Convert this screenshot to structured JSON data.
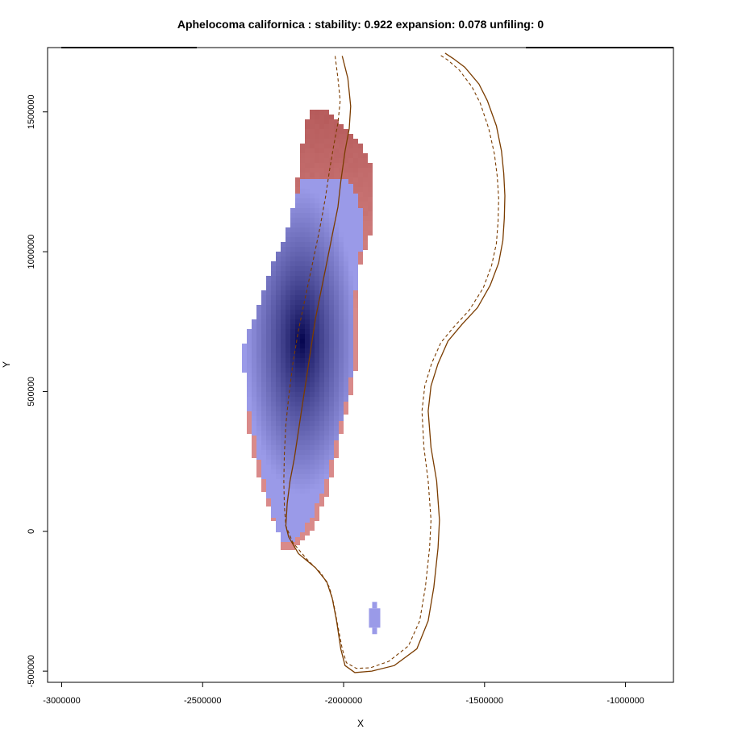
{
  "chart_data": {
    "type": "heatmap",
    "title": "Aphelocoma californica : stability: 0.922 expansion: 0.078 unfiling: 0",
    "xlabel": "X",
    "ylabel": "Y",
    "xlim": [
      -3050000,
      -830000
    ],
    "ylim": [
      -540000,
      1730000
    ],
    "x_ticks": [
      -3000000,
      -2500000,
      -2000000,
      -1500000,
      -1000000
    ],
    "y_ticks": [
      -500000,
      0,
      500000,
      1000000,
      1500000
    ],
    "x_tick_labels": [
      "-3000000",
      "-2500000",
      "-2000000",
      "-1500000",
      "-1000000"
    ],
    "y_tick_labels": [
      "-500000",
      "0",
      "500000",
      "1000000",
      "1500000"
    ],
    "grid": false,
    "legend": "none",
    "colors": {
      "stability": "#00004a",
      "stability_light": "#9a9ae8",
      "expansion": "#d98a8a",
      "expansion_dark": "#b55a5a",
      "outline": "#7a3c00"
    },
    "layers": [
      {
        "name": "stability",
        "peak": [
          -2150000,
          680000
        ]
      },
      {
        "name": "expansion",
        "extent": [
          -2095000,
          -1910000,
          1000000,
          1500000
        ]
      },
      {
        "name": "stability-patch",
        "center": [
          -1890000,
          -310000
        ]
      }
    ],
    "outline_solid": [
      [
        -2005000,
        1700000
      ],
      [
        -1985000,
        1620000
      ],
      [
        -1975000,
        1520000
      ],
      [
        -1980000,
        1440000
      ],
      [
        -1995000,
        1360000
      ],
      [
        -2010000,
        1250000
      ],
      [
        -2020000,
        1160000
      ],
      [
        -2040000,
        1060000
      ],
      [
        -2060000,
        960000
      ],
      [
        -2080000,
        860000
      ],
      [
        -2100000,
        760000
      ],
      [
        -2115000,
        660000
      ],
      [
        -2130000,
        560000
      ],
      [
        -2145000,
        460000
      ],
      [
        -2160000,
        360000
      ],
      [
        -2175000,
        260000
      ],
      [
        -2190000,
        180000
      ],
      [
        -2200000,
        100000
      ],
      [
        -2205000,
        20000
      ],
      [
        -2195000,
        -20000
      ],
      [
        -2160000,
        -80000
      ],
      [
        -2100000,
        -130000
      ],
      [
        -2060000,
        -180000
      ],
      [
        -2040000,
        -240000
      ],
      [
        -2025000,
        -320000
      ],
      [
        -2010000,
        -420000
      ],
      [
        -1995000,
        -480000
      ],
      [
        -1960000,
        -505000
      ],
      [
        -1900000,
        -500000
      ],
      [
        -1820000,
        -480000
      ],
      [
        -1740000,
        -420000
      ],
      [
        -1700000,
        -320000
      ],
      [
        -1680000,
        -200000
      ],
      [
        -1665000,
        -60000
      ],
      [
        -1660000,
        40000
      ],
      [
        -1670000,
        180000
      ],
      [
        -1690000,
        300000
      ],
      [
        -1700000,
        430000
      ],
      [
        -1690000,
        520000
      ],
      [
        -1665000,
        600000
      ],
      [
        -1630000,
        680000
      ],
      [
        -1580000,
        740000
      ],
      [
        -1525000,
        800000
      ],
      [
        -1480000,
        880000
      ],
      [
        -1450000,
        960000
      ],
      [
        -1435000,
        1040000
      ],
      [
        -1430000,
        1120000
      ],
      [
        -1428000,
        1200000
      ],
      [
        -1432000,
        1280000
      ],
      [
        -1440000,
        1360000
      ],
      [
        -1458000,
        1450000
      ],
      [
        -1490000,
        1540000
      ],
      [
        -1520000,
        1600000
      ],
      [
        -1570000,
        1660000
      ],
      [
        -1610000,
        1690000
      ],
      [
        -1640000,
        1710000
      ]
    ],
    "outline_dashed": [
      [
        -2030000,
        1700000
      ],
      [
        -2020000,
        1620000
      ],
      [
        -2012000,
        1540000
      ],
      [
        -2020000,
        1460000
      ],
      [
        -2035000,
        1380000
      ],
      [
        -2050000,
        1290000
      ],
      [
        -2065000,
        1190000
      ],
      [
        -2085000,
        1080000
      ],
      [
        -2110000,
        960000
      ],
      [
        -2135000,
        840000
      ],
      [
        -2160000,
        720000
      ],
      [
        -2180000,
        600000
      ],
      [
        -2195000,
        480000
      ],
      [
        -2205000,
        380000
      ],
      [
        -2210000,
        280000
      ],
      [
        -2212000,
        180000
      ],
      [
        -2210000,
        90000
      ],
      [
        -2205000,
        20000
      ],
      [
        -2180000,
        -40000
      ],
      [
        -2130000,
        -100000
      ],
      [
        -2080000,
        -150000
      ],
      [
        -2050000,
        -200000
      ],
      [
        -2035000,
        -260000
      ],
      [
        -2020000,
        -340000
      ],
      [
        -2005000,
        -420000
      ],
      [
        -1990000,
        -470000
      ],
      [
        -1955000,
        -490000
      ],
      [
        -1905000,
        -488000
      ],
      [
        -1840000,
        -465000
      ],
      [
        -1770000,
        -410000
      ],
      [
        -1730000,
        -320000
      ],
      [
        -1710000,
        -200000
      ],
      [
        -1695000,
        -60000
      ],
      [
        -1690000,
        40000
      ],
      [
        -1700000,
        180000
      ],
      [
        -1715000,
        300000
      ],
      [
        -1722000,
        430000
      ],
      [
        -1712000,
        520000
      ],
      [
        -1688000,
        600000
      ],
      [
        -1655000,
        675000
      ],
      [
        -1610000,
        730000
      ],
      [
        -1555000,
        790000
      ],
      [
        -1505000,
        870000
      ],
      [
        -1475000,
        950000
      ],
      [
        -1458000,
        1030000
      ],
      [
        -1452000,
        1110000
      ],
      [
        -1450000,
        1190000
      ],
      [
        -1455000,
        1270000
      ],
      [
        -1465000,
        1350000
      ],
      [
        -1485000,
        1440000
      ],
      [
        -1515000,
        1530000
      ],
      [
        -1545000,
        1590000
      ],
      [
        -1590000,
        1650000
      ],
      [
        -1630000,
        1685000
      ],
      [
        -1660000,
        1705000
      ]
    ]
  }
}
